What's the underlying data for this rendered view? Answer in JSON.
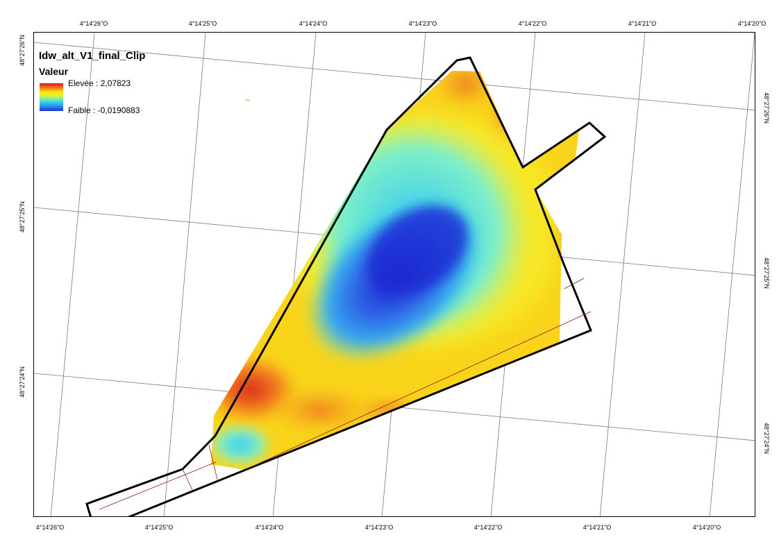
{
  "legend": {
    "title": "Idw_alt_V1_final_Clip",
    "subtitle": "Valeur",
    "high_label": "Elevée : 2,07823",
    "low_label": "Faible : -0,0190883",
    "ramp_colors": [
      "#d7191c",
      "#f07a1f",
      "#ffee00",
      "#b6f06a",
      "#35d8f0",
      "#2b8bea",
      "#1f2fd6"
    ]
  },
  "grid": {
    "top_labels": [
      "4°14'26\"O",
      "4°14'25\"O",
      "4°14'24\"O",
      "4°14'23\"O",
      "4°14'22\"O",
      "4°14'21\"O",
      "4°14'20\"O"
    ],
    "bottom_labels": [
      "4°14'26\"O",
      "4°14'25\"O",
      "4°14'24\"O",
      "4°14'23\"O",
      "4°14'22\"O",
      "4°14'21\"O",
      "4°14'20\"O"
    ],
    "left_labels": [
      "48°27'26\"N",
      "48°27'25\"N",
      "48°27'24\"N"
    ],
    "right_labels": [
      "48°27'26\"N",
      "48°27'25\"N",
      "48°27'24\"N"
    ]
  },
  "colors": {
    "outline": "#000000",
    "grid": "#7a7a7a",
    "inner_line": "#8b1a1a"
  }
}
